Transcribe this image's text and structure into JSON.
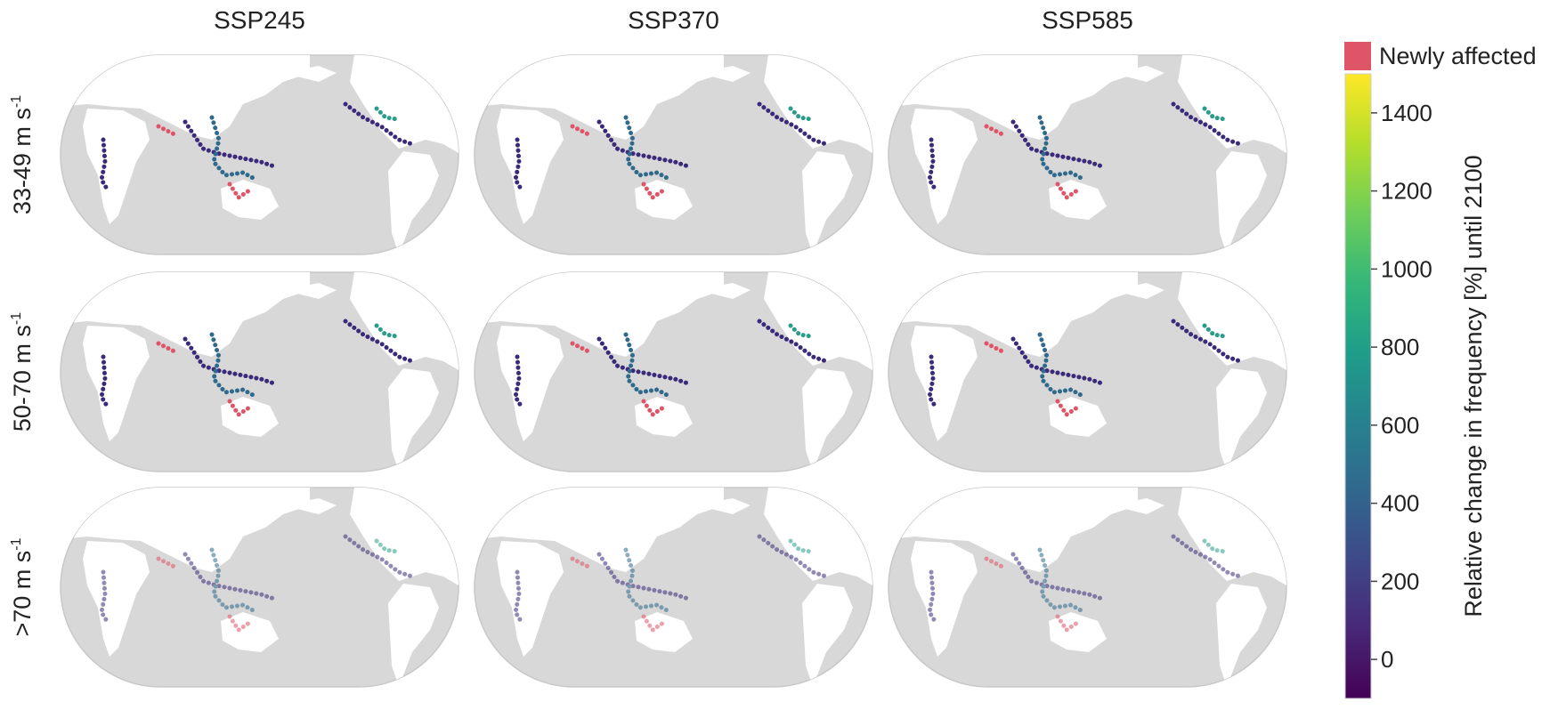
{
  "column_titles": [
    "SSP245",
    "SSP370",
    "SSP585"
  ],
  "row_labels": [
    {
      "text": "33-49 m s",
      "sup": "-1"
    },
    {
      "text": "50-70 m s",
      "sup": "-1"
    },
    {
      "text": ">70 m s",
      "sup": "-1"
    }
  ],
  "legend": {
    "label": "Newly affected",
    "color": "#e05468"
  },
  "colorbar": {
    "label": "Relative change in frequency [%] until 2100",
    "colormap": [
      "#440154",
      "#482878",
      "#3e4989",
      "#31688e",
      "#26828e",
      "#1f9e89",
      "#35b779",
      "#6ece58",
      "#b5de2b",
      "#fde725"
    ],
    "lim": [
      -100,
      1500
    ],
    "ticks": [
      0,
      200,
      400,
      600,
      800,
      1000,
      1200,
      1400
    ]
  }
}
